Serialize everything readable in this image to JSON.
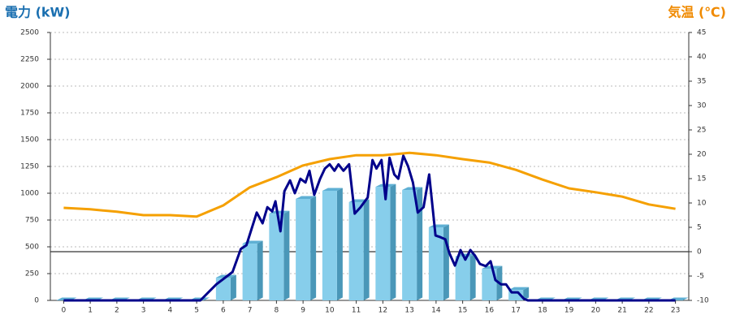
{
  "chart_data": {
    "type": "combo",
    "y_label": "電力 (kW)",
    "y2_label": "気温 (℃)",
    "categories": [
      "0",
      "1",
      "2",
      "3",
      "4",
      "5",
      "6",
      "7",
      "8",
      "9",
      "10",
      "11",
      "12",
      "13",
      "14",
      "15",
      "16",
      "17",
      "18",
      "19",
      "20",
      "21",
      "22",
      "23"
    ],
    "xlim": [
      -0.5,
      23.5
    ],
    "ylim": [
      0,
      2500
    ],
    "yticks": [
      0,
      250,
      500,
      750,
      1000,
      1250,
      1500,
      1750,
      2000,
      2250,
      2500
    ],
    "y2lim": [
      -10,
      45
    ],
    "y2ticks": [
      -10,
      -5,
      0,
      5,
      10,
      15,
      20,
      25,
      30,
      35,
      40,
      45
    ],
    "grid": true,
    "series": [
      {
        "type": "bar3d",
        "color": "#87ceeb",
        "values": [
          0,
          0,
          0,
          0,
          0,
          0,
          212,
          530,
          810,
          947,
          1023,
          917,
          1060,
          1030,
          682,
          409,
          295,
          98,
          0,
          0,
          0,
          0,
          0,
          0
        ]
      },
      {
        "type": "line",
        "color": "#00008b",
        "x": [
          0,
          5.14,
          5.74,
          6.35,
          6.66,
          6.87,
          7.26,
          7.48,
          7.66,
          7.84,
          7.96,
          8.15,
          8.3,
          8.51,
          8.69,
          8.9,
          9.09,
          9.24,
          9.42,
          9.64,
          9.82,
          10.0,
          10.18,
          10.33,
          10.52,
          10.73,
          10.94,
          11.16,
          11.43,
          11.61,
          11.76,
          11.95,
          12.1,
          12.25,
          12.43,
          12.58,
          12.77,
          12.95,
          13.13,
          13.31,
          13.53,
          13.74,
          13.98,
          14.16,
          14.35,
          14.5,
          14.71,
          14.92,
          15.1,
          15.29,
          15.47,
          15.65,
          15.87,
          16.05,
          16.23,
          16.44,
          16.63,
          16.84,
          17.08,
          17.3,
          17.45,
          23
        ],
        "values": [
          0,
          0,
          150,
          265,
          480,
          515,
          820,
          720,
          870,
          830,
          925,
          645,
          1020,
          1120,
          1000,
          1135,
          1100,
          1210,
          985,
          1135,
          1230,
          1270,
          1210,
          1270,
          1210,
          1270,
          810,
          870,
          960,
          1310,
          1230,
          1310,
          945,
          1330,
          1175,
          1135,
          1350,
          1250,
          1100,
          820,
          870,
          1175,
          605,
          590,
          570,
          440,
          325,
          470,
          380,
          470,
          415,
          340,
          320,
          365,
          190,
          150,
          150,
          75,
          75,
          15,
          0,
          0
        ]
      },
      {
        "type": "line",
        "axis": "y2",
        "color": "#f5a000",
        "values": [
          9.0,
          8.7,
          8.2,
          7.5,
          7.5,
          7.2,
          9.5,
          13.2,
          15.3,
          17.7,
          19.0,
          19.8,
          19.8,
          20.3,
          19.8,
          19.0,
          18.3,
          16.8,
          14.8,
          13.0,
          12.2,
          11.3,
          9.7,
          8.8
        ]
      }
    ]
  }
}
